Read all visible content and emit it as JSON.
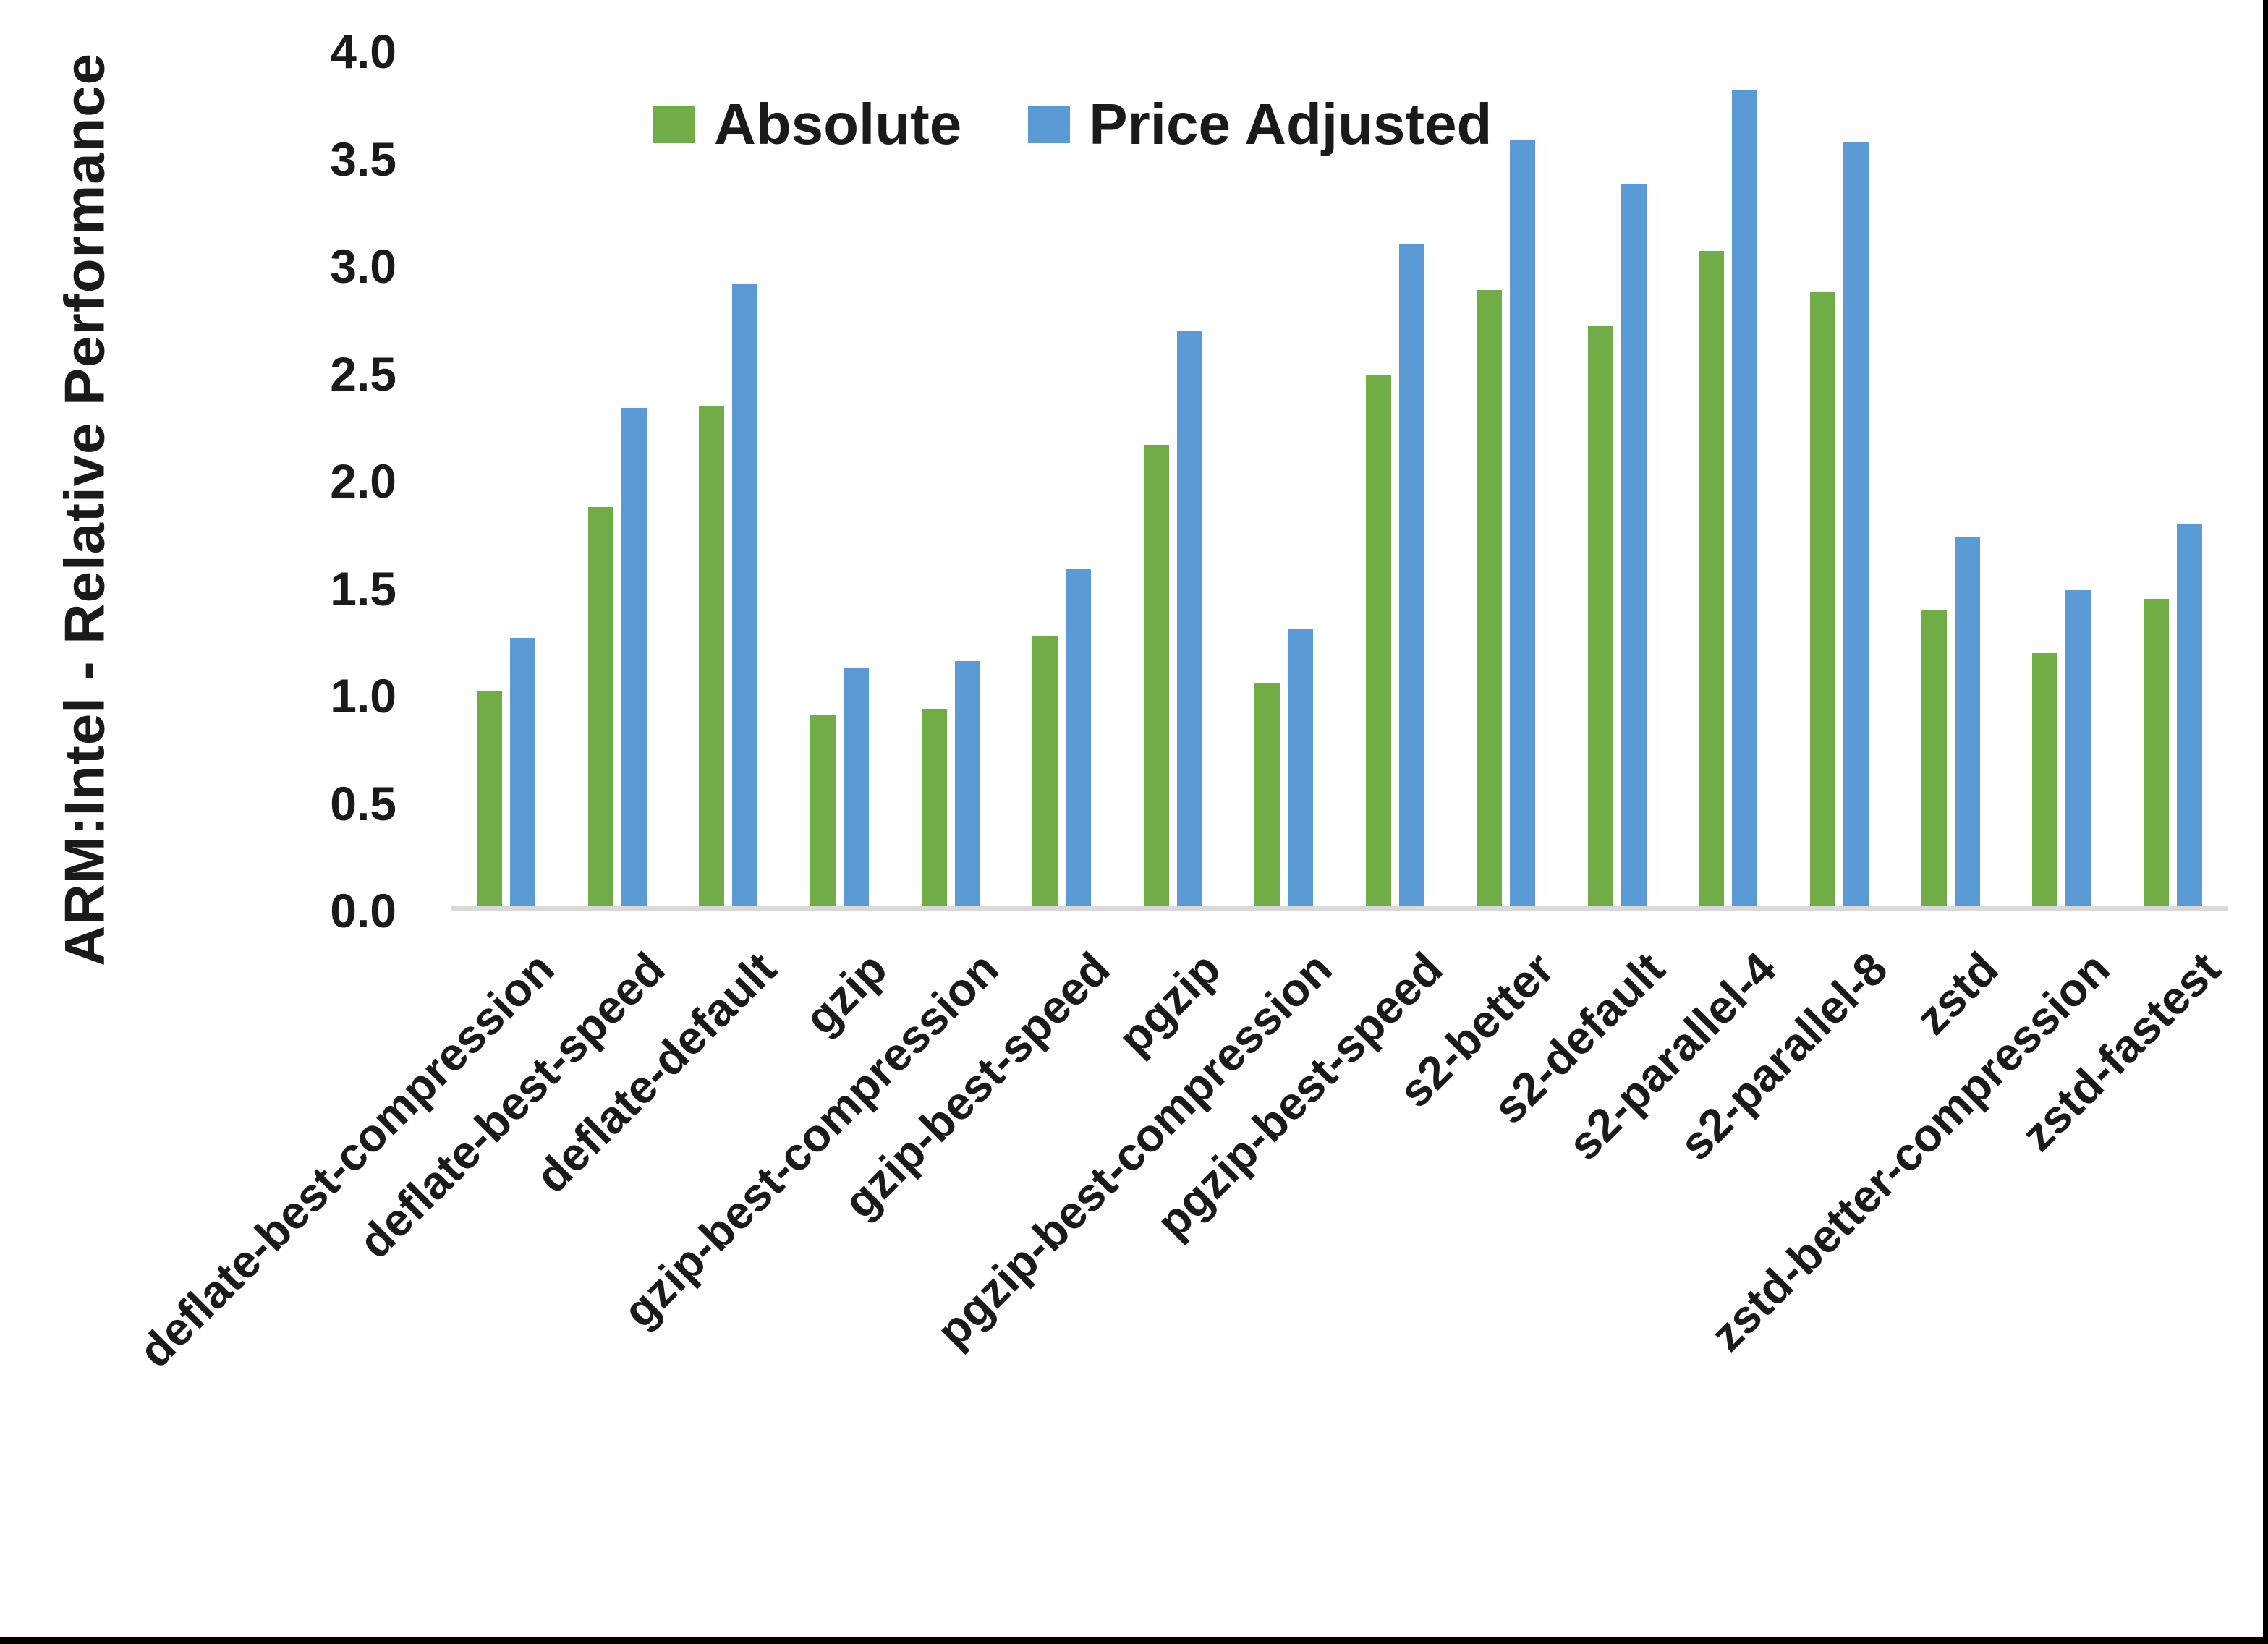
{
  "chart_data": {
    "type": "bar",
    "title": "",
    "ylabel": "ARM:Intel - Relative Performance",
    "xlabel": "",
    "ylim": [
      0,
      4
    ],
    "ytick_step": 0.5,
    "ytick_labels": [
      "0.0",
      "0.5",
      "1.0",
      "1.5",
      "2.0",
      "2.5",
      "3.0",
      "3.5",
      "4.0"
    ],
    "grid": false,
    "legend_position": "top-center",
    "categories": [
      "deflate-best-compression",
      "deflate-best-speed",
      "deflate-default",
      "gzip",
      "gzip-best-compression",
      "gzip-best-speed",
      "pgzip",
      "pgzip-best-compression",
      "pgzip-best-speed",
      "s2-better",
      "s2-default",
      "s2-parallel-4",
      "s2-parallel-8",
      "zstd",
      "zstd-better-compression",
      "zstd-fastest"
    ],
    "series": [
      {
        "name": "Absolute",
        "color": "#70AD47",
        "values": [
          1.0,
          1.86,
          2.33,
          0.89,
          0.92,
          1.26,
          2.15,
          1.04,
          2.47,
          2.87,
          2.7,
          3.05,
          2.86,
          1.38,
          1.18,
          1.43
        ]
      },
      {
        "name": "Price Adjusted",
        "color": "#5B9BD5",
        "values": [
          1.25,
          2.32,
          2.9,
          1.11,
          1.14,
          1.57,
          2.68,
          1.29,
          3.08,
          3.57,
          3.36,
          3.8,
          3.56,
          1.72,
          1.47,
          1.78
        ]
      }
    ]
  },
  "colors": {
    "axis_line": "#D9D9D9",
    "text": "#1A1A1A",
    "background": "#FFFFFF",
    "window_border": "#000000"
  }
}
